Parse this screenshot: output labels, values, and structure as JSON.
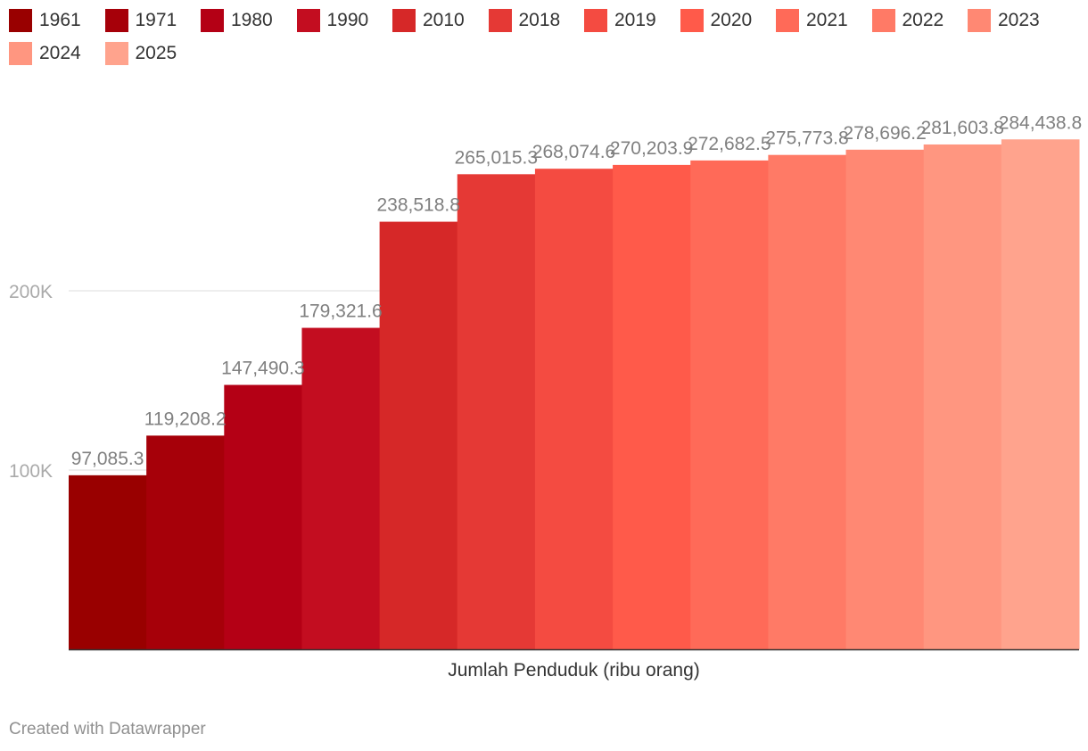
{
  "chart_data": {
    "type": "bar",
    "categories": [
      "1961",
      "1971",
      "1980",
      "1990",
      "2010",
      "2018",
      "2019",
      "2020",
      "2021",
      "2022",
      "2023",
      "2024",
      "2025"
    ],
    "xlabel": "Jumlah Penduduk (ribu orang)",
    "ylim": [
      0,
      300000
    ],
    "y_ticks": [
      {
        "value": 100000,
        "label": "100K"
      },
      {
        "value": 200000,
        "label": "200K"
      }
    ],
    "grid": true,
    "legend_position": "top",
    "series": [
      {
        "name": "1961",
        "value": 97085.3,
        "label": "97,085.3",
        "color": "#990000"
      },
      {
        "name": "1971",
        "value": 119208.2,
        "label": "119,208.2",
        "color": "#a60009"
      },
      {
        "name": "1980",
        "value": 147490.3,
        "label": "147,490.3",
        "color": "#b40015"
      },
      {
        "name": "1990",
        "value": 179321.6,
        "label": "179,321.6",
        "color": "#c30d20"
      },
      {
        "name": "2010",
        "value": 238518.8,
        "label": "238,518.8",
        "color": "#d62828"
      },
      {
        "name": "2018",
        "value": 265015.3,
        "label": "265,015.3",
        "color": "#e53935"
      },
      {
        "name": "2019",
        "value": 268074.6,
        "label": "268,074.6",
        "color": "#f44b41"
      },
      {
        "name": "2020",
        "value": 270203.9,
        "label": "270,203.9",
        "color": "#ff5a4a"
      },
      {
        "name": "2021",
        "value": 272682.5,
        "label": "272,682.5",
        "color": "#ff6a58"
      },
      {
        "name": "2022",
        "value": 275773.8,
        "label": "275,773.8",
        "color": "#ff7a66"
      },
      {
        "name": "2023",
        "value": 278696.2,
        "label": "278,696.2",
        "color": "#ff8873"
      },
      {
        "name": "2024",
        "value": 281603.8,
        "label": "281,603.8",
        "color": "#ff9680"
      },
      {
        "name": "2025",
        "value": 284438.8,
        "label": "284,438.8",
        "color": "#ffa38d"
      }
    ]
  },
  "footer": {
    "credit": "Created with Datawrapper"
  }
}
